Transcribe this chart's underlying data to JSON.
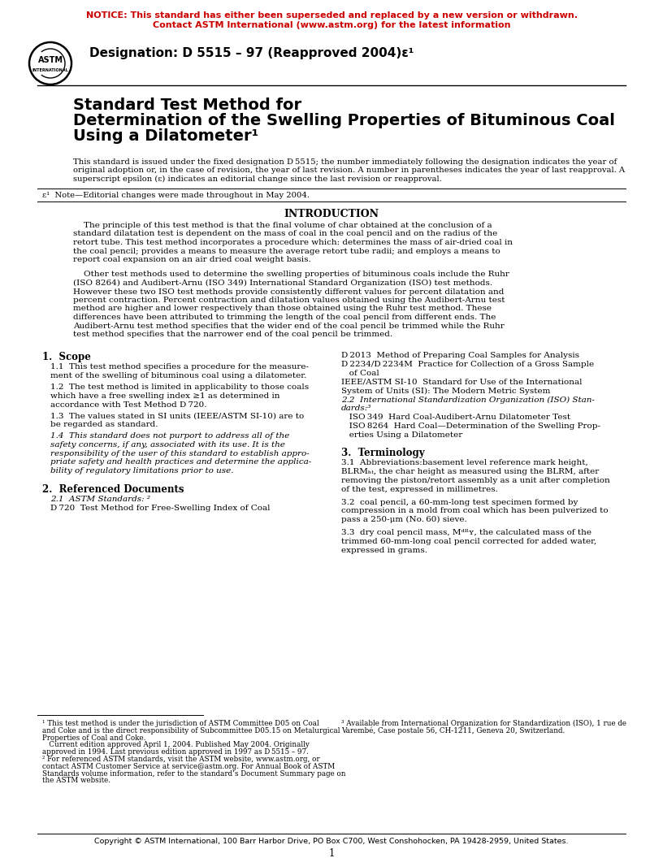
{
  "notice_line1": "NOTICE: This standard has either been superseded and replaced by a new version or withdrawn.",
  "notice_line2": "Contact ASTM International (www.astm.org) for the latest information",
  "notice_color": "#CC0000",
  "designation": "Designation: D 5515 – 97 (Reapproved 2004)ε¹",
  "title_line1": "Standard Test Method for",
  "title_line2": "Determination of the Swelling Properties of Bituminous Coal",
  "title_line3": "Using a Dilatometer¹",
  "epsilon_note": "ε¹  Note—Editorial changes were made throughout in May 2004.",
  "section_intro": "INTRODUCTION",
  "sec1_title": "1.  Scope",
  "sec2_title": "2.  Referenced Documents",
  "sec2_1": "2.1  ASTM Standards: ²",
  "sec2_d720": "D 720  Test Method for Free-Swelling Index of Coal",
  "sec3_title": "3.  Terminology",
  "footer": "Copyright © ASTM International, 100 Barr Harbor Drive, PO Box C700, West Conshohocken, PA 19428-2959, United States.",
  "page_num": "1",
  "bg_color": "#ffffff",
  "text_color": "#000000"
}
